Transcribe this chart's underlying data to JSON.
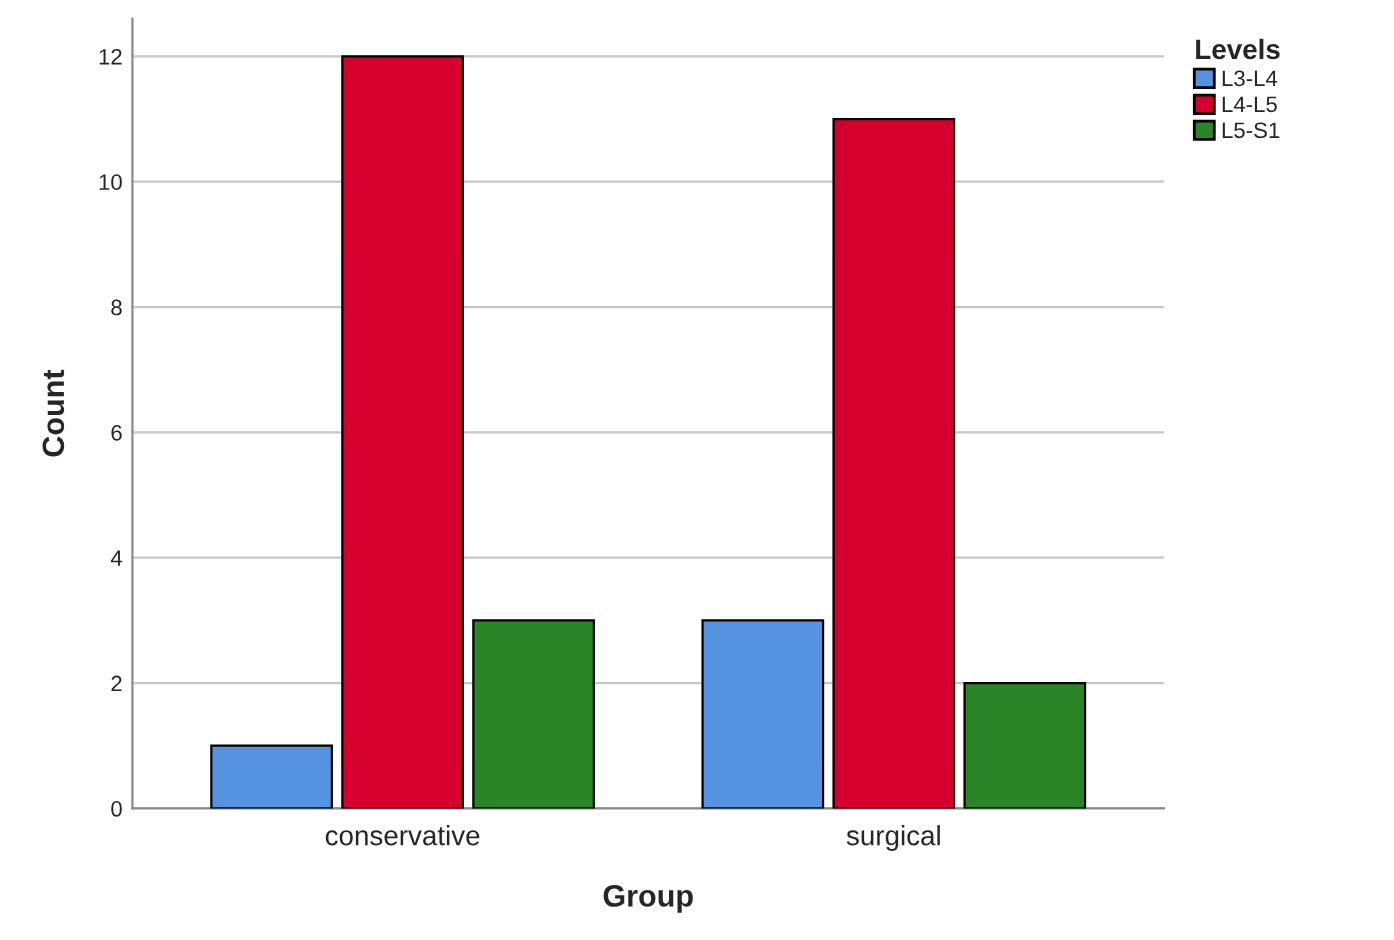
{
  "chart_data": {
    "type": "bar",
    "xlabel": "Group",
    "ylabel": "Count",
    "legend_title": "Levels",
    "categories": [
      "conservative",
      "surgical"
    ],
    "series": [
      {
        "name": "L3-L4",
        "color": "#5592e0",
        "values": [
          1,
          3
        ]
      },
      {
        "name": "L4-L5",
        "color": "#d6002e",
        "values": [
          12,
          11
        ]
      },
      {
        "name": "L5-S1",
        "color": "#2a8526",
        "values": [
          3,
          2
        ]
      }
    ],
    "ylim": [
      0,
      12.6
    ],
    "yticks": [
      0,
      2,
      4,
      6,
      8,
      10,
      12
    ],
    "grid": "y",
    "legend": "top right"
  }
}
